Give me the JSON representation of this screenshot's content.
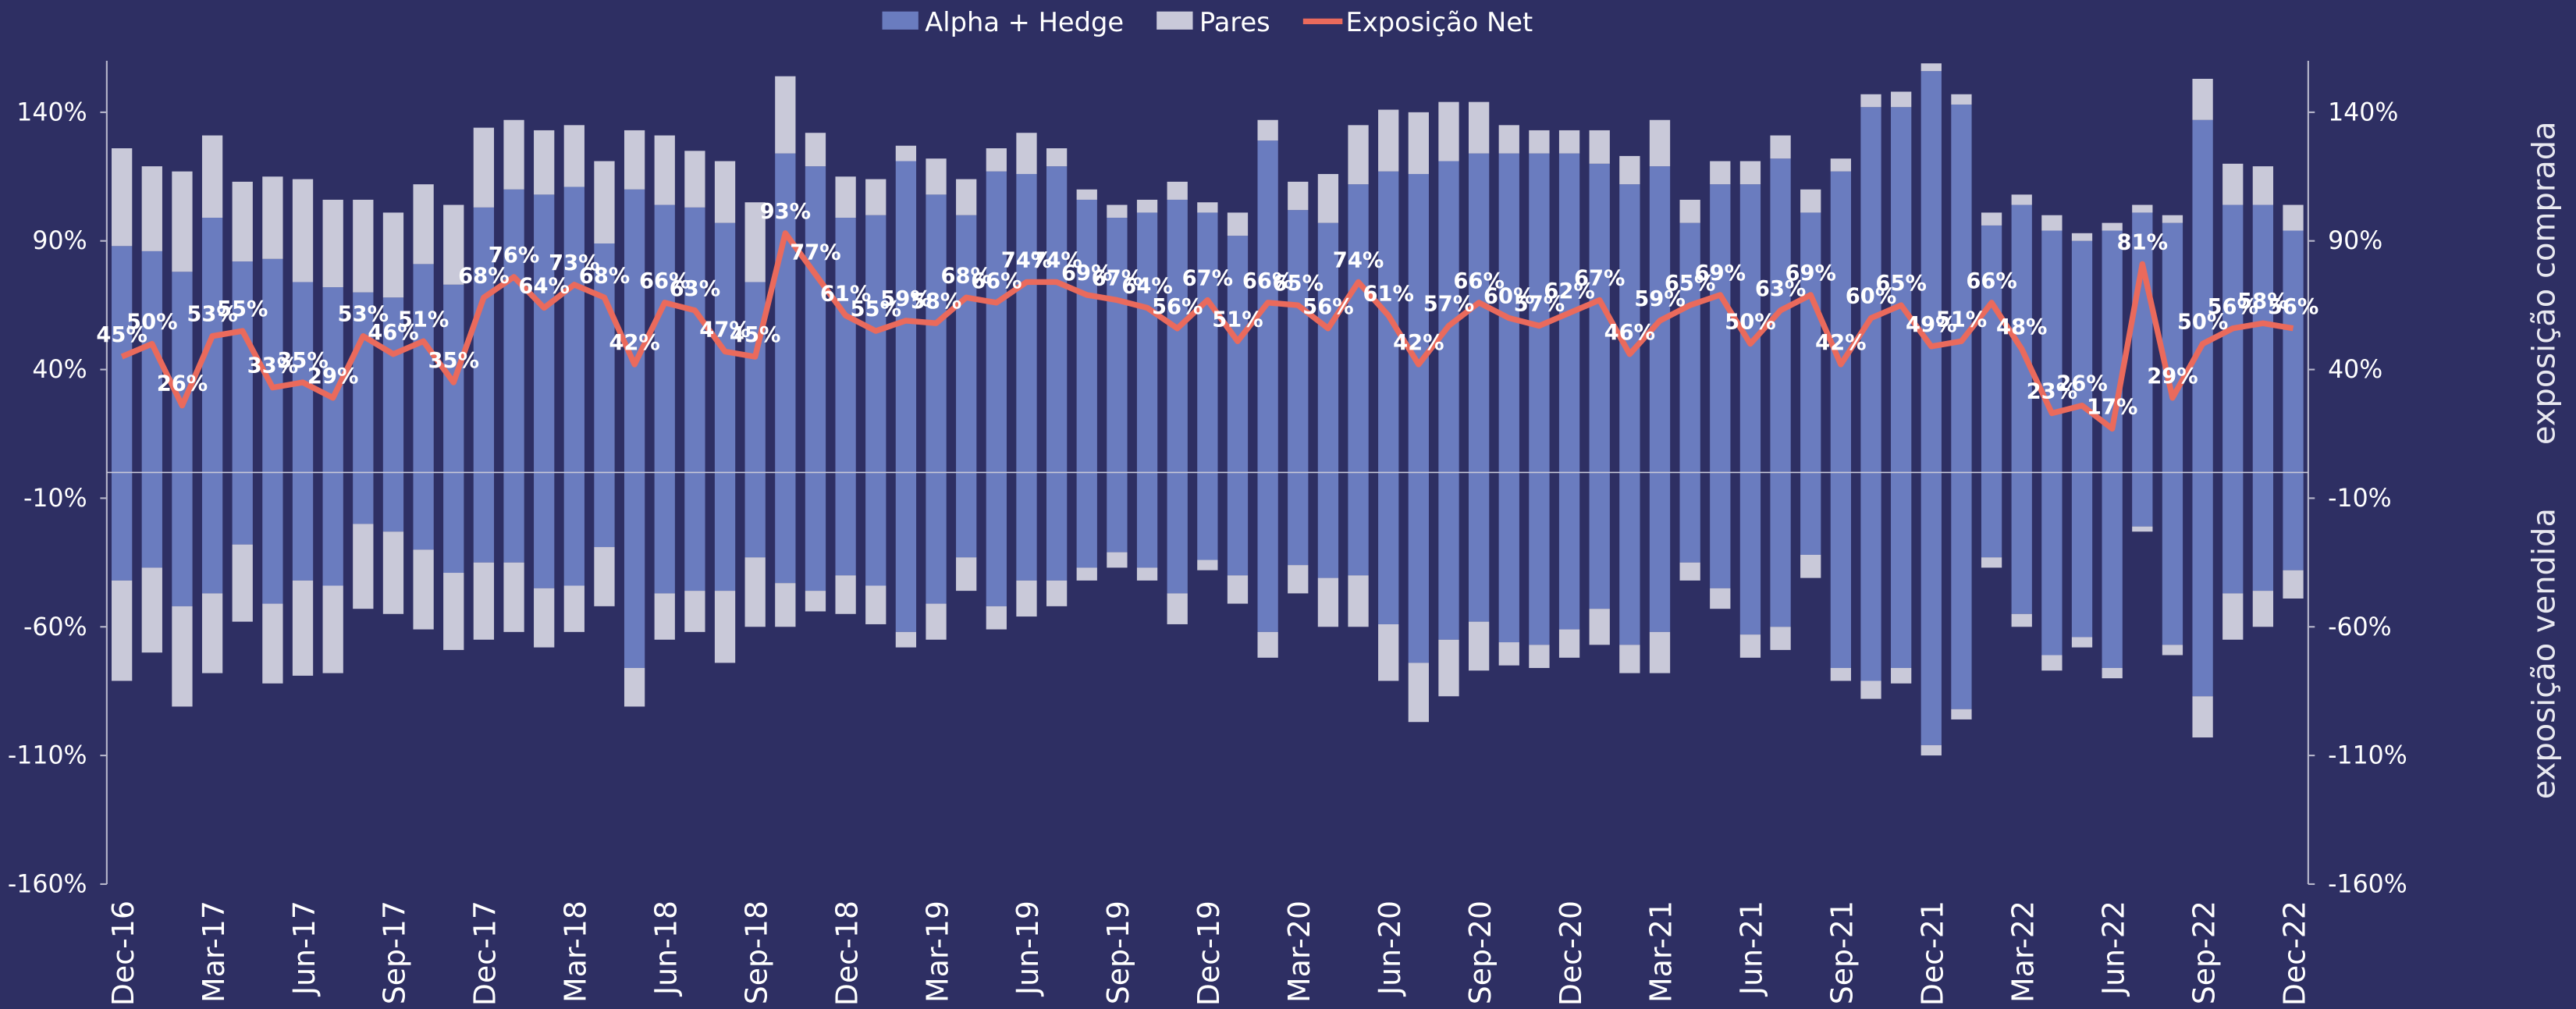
{
  "chart_data": {
    "type": "bar",
    "categories": [
      "Dec-16",
      null,
      null,
      "Mar-17",
      null,
      null,
      "Jun-17",
      null,
      null,
      "Sep-17",
      null,
      null,
      "Dec-17",
      null,
      null,
      "Mar-18",
      null,
      null,
      "Jun-18",
      null,
      null,
      "Sep-18",
      null,
      null,
      "Dec-18",
      null,
      null,
      "Mar-19",
      null,
      null,
      "Jun-19",
      null,
      null,
      "Sep-19",
      null,
      null,
      "Dec-19",
      null,
      null,
      "Mar-20",
      null,
      null,
      "Jun-20",
      null,
      null,
      "Sep-20",
      null,
      null,
      "Dec-20",
      null,
      null,
      "Mar-21",
      null,
      null,
      "Jun-21",
      null,
      null,
      "Sep-21",
      null,
      null,
      "Dec-21",
      null,
      null,
      "Mar-22",
      null,
      null,
      "Jun-22",
      null,
      null,
      "Sep-22",
      null,
      null,
      "Dec-22"
    ],
    "series": [
      {
        "name": "Alpha + Hedge",
        "color": "#6a7cbf",
        "values": [
          88,
          86,
          78,
          99,
          82,
          83,
          74,
          72,
          70,
          68,
          81,
          73,
          103,
          110,
          108,
          111,
          89,
          110,
          104,
          103,
          97,
          74,
          124,
          119,
          99,
          100,
          121,
          108,
          100,
          117,
          116,
          119,
          106,
          99,
          101,
          106,
          101,
          92,
          129,
          102,
          97,
          112,
          117,
          116,
          121,
          124,
          124,
          124,
          124,
          120,
          112,
          119,
          97,
          112,
          112,
          122,
          101,
          117,
          142,
          142,
          156,
          143,
          96,
          104,
          94,
          90,
          94,
          101,
          97,
          137,
          104,
          104,
          94
        ],
        "short_values": [
          -42,
          -37,
          -52,
          -47,
          -28,
          -51,
          -42,
          -44,
          -20,
          -23,
          -30,
          -39,
          -35,
          -35,
          -45,
          -44,
          -29,
          -76,
          -47,
          -46,
          -46,
          -33,
          -43,
          -46,
          -40,
          -44,
          -62,
          -51,
          -33,
          -52,
          -42,
          -42,
          -37,
          -31,
          -37,
          -47,
          -34,
          -40,
          -62,
          -36,
          -41,
          -40,
          -59,
          -74,
          -65,
          -58,
          -66,
          -67,
          -61,
          -53,
          -67,
          -62,
          -35,
          -45,
          -63,
          -60,
          -32,
          -76,
          -81,
          -76,
          -106,
          -92,
          -33,
          -55,
          -71,
          -64,
          -76,
          -21,
          -67,
          -87,
          -47,
          -46,
          -38
        ]
      },
      {
        "name": "Pares",
        "color": "#c9c9d9",
        "values": [
          38,
          33,
          39,
          32,
          31,
          32,
          40,
          34,
          36,
          33,
          31,
          31,
          31,
          27,
          25,
          24,
          32,
          23,
          27,
          22,
          24,
          31,
          30,
          13,
          16,
          14,
          6,
          14,
          14,
          9,
          16,
          7,
          4,
          5,
          5,
          7,
          4,
          9,
          8,
          11,
          19,
          23,
          24,
          24,
          23,
          20,
          11,
          9,
          9,
          13,
          11,
          18,
          9,
          9,
          9,
          9,
          9,
          5,
          5,
          6,
          3,
          4,
          5,
          4,
          6,
          3,
          3,
          3,
          3,
          16,
          16,
          15,
          10
        ],
        "short_values": [
          -39,
          -33,
          -39,
          -31,
          -30,
          -31,
          -37,
          -34,
          -33,
          -32,
          -31,
          -30,
          -30,
          -27,
          -23,
          -18,
          -23,
          -15,
          -18,
          -16,
          -28,
          -27,
          -17,
          -8,
          -15,
          -15,
          -6,
          -14,
          -13,
          -9,
          -14,
          -10,
          -5,
          -6,
          -5,
          -12,
          -4,
          -11,
          -10,
          -11,
          -19,
          -20,
          -22,
          -23,
          -22,
          -19,
          -9,
          -9,
          -11,
          -14,
          -11,
          -16,
          -7,
          -8,
          -9,
          -9,
          -9,
          -5,
          -7,
          -6,
          -4,
          -4,
          -4,
          -5,
          -6,
          -4,
          -4,
          -2,
          -4,
          -16,
          -18,
          -14,
          -11
        ]
      },
      {
        "name": "Exposição Net",
        "color": "#ea6a5c",
        "type": "line",
        "values": [
          45,
          50,
          26,
          53,
          55,
          33,
          35,
          29,
          53,
          46,
          51,
          35,
          68,
          76,
          64,
          73,
          68,
          42,
          66,
          63,
          47,
          45,
          93,
          77,
          61,
          55,
          59,
          58,
          68,
          66,
          74,
          74,
          69,
          67,
          64,
          56,
          67,
          51,
          66,
          65,
          56,
          74,
          61,
          42,
          57,
          66,
          60,
          57,
          62,
          67,
          46,
          59,
          65,
          69,
          50,
          63,
          69,
          42,
          60,
          65,
          49,
          51,
          66,
          48,
          23,
          26,
          17,
          81,
          29,
          50,
          56,
          58,
          56
        ],
        "value_labels": [
          "45%",
          "50%",
          "26%",
          "53%",
          "55%",
          "33%",
          "35%",
          "29%",
          "53%",
          "46%",
          "51%",
          "35%",
          "68%",
          "76%",
          "64%",
          "73%",
          "68%",
          "42%",
          "66%",
          "63%",
          "47%",
          "45%",
          "93%",
          "77%",
          "61%",
          "55%",
          "59%",
          "58%",
          "68%",
          "66%",
          "74%",
          "74%",
          "69%",
          "67%",
          "64%",
          "56%",
          "67%",
          "51%",
          "66%",
          "65%",
          "56%",
          "74%",
          "61%",
          "42%",
          "57%",
          "66%",
          "60%",
          "57%",
          "62%",
          "67%",
          "46%",
          "59%",
          "65%",
          "69%",
          "50%",
          "63%",
          "69%",
          "42%",
          "60%",
          "65%",
          "49%",
          "51%",
          "66%",
          "48%",
          "23%",
          "26%",
          "17%",
          "81%",
          "29%",
          "50%",
          "56%",
          "58%",
          "56%"
        ]
      }
    ],
    "ylim": [
      -160,
      160
    ],
    "yticks": [
      {
        "value": 140,
        "label": "140%"
      },
      {
        "value": 90,
        "label": "90%"
      },
      {
        "value": 40,
        "label": "40%"
      },
      {
        "value": -10,
        "label": "-10%"
      },
      {
        "value": -60,
        "label": "-60%"
      },
      {
        "value": -110,
        "label": "-110%"
      },
      {
        "value": -160,
        "label": "-160%"
      }
    ],
    "y2lim": [
      -160,
      160
    ],
    "y2ticks": [
      {
        "value": 140,
        "label": "140%"
      },
      {
        "value": 90,
        "label": "90%"
      },
      {
        "value": 40,
        "label": "40%"
      },
      {
        "value": -10,
        "label": "-10%"
      },
      {
        "value": -60,
        "label": "-60%"
      },
      {
        "value": -110,
        "label": "-110%"
      },
      {
        "value": -160,
        "label": "-160%"
      }
    ],
    "y2labels": [
      "exposição comprada",
      "exposição vendida"
    ],
    "grid": false,
    "legend": "top"
  }
}
